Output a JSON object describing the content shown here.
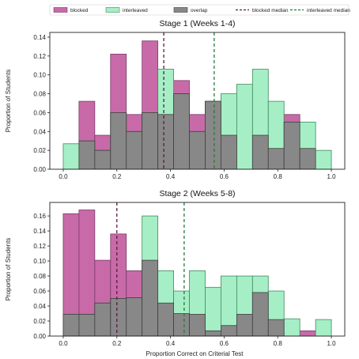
{
  "colors": {
    "blocked": "#c86aa8",
    "interleaved": "#a6efc6",
    "overlap": "#888888",
    "blocked_edge": "#7a3a66",
    "interleaved_edge": "#3c8a5a",
    "overlap_edge": "#3f3f3f",
    "blocked_median": "#5a1a44",
    "interleaved_median": "#2a7a3a"
  },
  "legend": {
    "placement": "top",
    "items": [
      {
        "key": "blocked",
        "label": "blocked",
        "kind": "patch"
      },
      {
        "key": "interleaved",
        "label": "interleaved",
        "kind": "patch"
      },
      {
        "key": "overlap",
        "label": "overlap",
        "kind": "patch"
      },
      {
        "key": "blocked_median",
        "label": "blocked median",
        "kind": "dash"
      },
      {
        "key": "interleaved_median",
        "label": "interleaved median",
        "kind": "dash"
      }
    ]
  },
  "xlabel": "Proportion Correct on Criterial Test",
  "chart_data": [
    {
      "type": "histogram",
      "title": "Stage 1 (Weeks 1-4)",
      "ylabel": "Proportion of Students",
      "xlim": [
        -0.05,
        1.05
      ],
      "ylim": [
        0,
        0.145
      ],
      "xticks": [
        0.0,
        0.2,
        0.4,
        0.6,
        0.8,
        1.0
      ],
      "xtick_labels": [
        "0.0",
        "0.2",
        "0.4",
        "0.6",
        "0.8",
        "1.0"
      ],
      "yticks": [
        0.0,
        0.02,
        0.04,
        0.06,
        0.08,
        0.1,
        0.12,
        0.14
      ],
      "ytick_labels": [
        "0.00",
        "0.02",
        "0.04",
        "0.06",
        "0.08",
        "0.10",
        "0.12",
        "0.14"
      ],
      "grid": false,
      "bin_edges": [
        0.0,
        0.0588,
        0.1176,
        0.1765,
        0.2353,
        0.2941,
        0.3529,
        0.4118,
        0.4706,
        0.5294,
        0.5882,
        0.6471,
        0.7059,
        0.7647,
        0.8235,
        0.8824,
        0.9412,
        1.0
      ],
      "series": [
        {
          "name": "blocked",
          "values": [
            0.0,
            0.072,
            0.036,
            0.122,
            0.058,
            0.136,
            0.058,
            0.094,
            0.058,
            0.072,
            0.036,
            0.0,
            0.036,
            0.022,
            0.058,
            0.022,
            0.0
          ]
        },
        {
          "name": "interleaved",
          "values": [
            0.027,
            0.03,
            0.02,
            0.06,
            0.04,
            0.06,
            0.106,
            0.08,
            0.04,
            0.072,
            0.08,
            0.09,
            0.106,
            0.072,
            0.05,
            0.05,
            0.02
          ]
        }
      ],
      "medians": {
        "blocked": 0.375,
        "interleaved": 0.563
      }
    },
    {
      "type": "histogram",
      "title": "Stage 2 (Weeks 5-8)",
      "ylabel": "Proportion of Students",
      "xlim": [
        -0.05,
        1.05
      ],
      "ylim": [
        0,
        0.178
      ],
      "xticks": [
        0.0,
        0.2,
        0.4,
        0.6,
        0.8,
        1.0
      ],
      "xtick_labels": [
        "0.0",
        "0.2",
        "0.4",
        "0.6",
        "0.8",
        "1.0"
      ],
      "yticks": [
        0.0,
        0.02,
        0.04,
        0.06,
        0.08,
        0.1,
        0.12,
        0.14,
        0.16
      ],
      "ytick_labels": [
        "0.00",
        "0.02",
        "0.04",
        "0.06",
        "0.08",
        "0.10",
        "0.12",
        "0.14",
        "0.16"
      ],
      "grid": false,
      "bin_edges": [
        0.0,
        0.0588,
        0.1176,
        0.1765,
        0.2353,
        0.2941,
        0.3529,
        0.4118,
        0.4706,
        0.5294,
        0.5882,
        0.6471,
        0.7059,
        0.7647,
        0.8235,
        0.8824,
        0.9412,
        1.0
      ],
      "series": [
        {
          "name": "blocked",
          "values": [
            0.163,
            0.168,
            0.101,
            0.136,
            0.087,
            0.101,
            0.044,
            0.03,
            0.029,
            0.007,
            0.014,
            0.029,
            0.058,
            0.022,
            0.0,
            0.007,
            0.0
          ]
        },
        {
          "name": "interleaved",
          "values": [
            0.029,
            0.029,
            0.044,
            0.05,
            0.051,
            0.16,
            0.087,
            0.06,
            0.087,
            0.065,
            0.08,
            0.08,
            0.08,
            0.06,
            0.023,
            0.0,
            0.022
          ]
        }
      ],
      "medians": {
        "blocked": 0.2,
        "interleaved": 0.451
      }
    }
  ]
}
